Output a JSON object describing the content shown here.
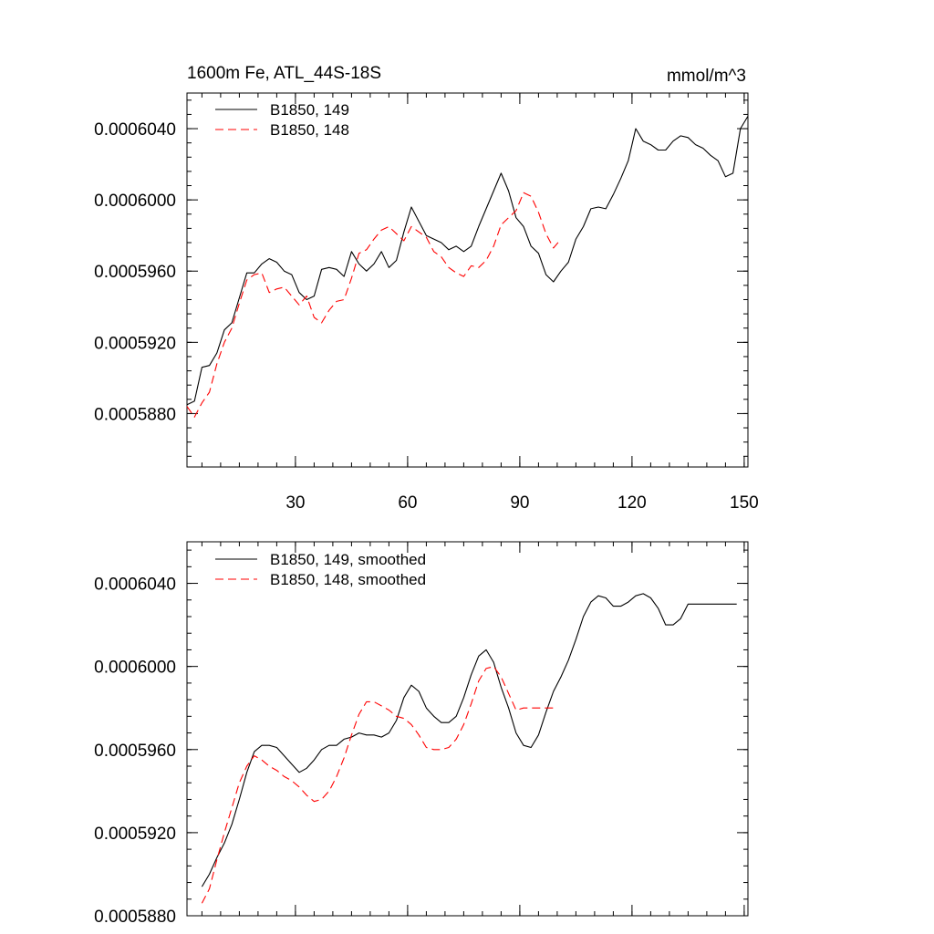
{
  "chart_data": [
    {
      "type": "line",
      "title": "1600m Fe, ATL_44S-18S",
      "units": "mmol/m^3",
      "xlim": [
        1,
        151
      ],
      "ylim": [
        0.000585,
        0.000606
      ],
      "xticks": [
        30,
        60,
        90,
        120,
        150
      ],
      "yticks": [
        0.000588,
        0.000592,
        0.000596,
        0.0006,
        0.000604
      ],
      "ytick_labels": [
        "0.0005880",
        "0.0005920",
        "0.0005960",
        "0.0006000",
        "0.0006040"
      ],
      "grid": false,
      "legend_position": "top-left",
      "series": [
        {
          "name": "B1850, 149",
          "color": "#000000",
          "dash": "solid",
          "x": [
            1,
            3,
            5,
            7,
            9,
            11,
            13,
            15,
            17,
            19,
            21,
            23,
            25,
            27,
            29,
            31,
            33,
            35,
            37,
            39,
            41,
            43,
            45,
            47,
            49,
            51,
            53,
            55,
            57,
            59,
            61,
            63,
            65,
            67,
            69,
            71,
            73,
            75,
            77,
            79,
            81,
            83,
            85,
            87,
            89,
            91,
            93,
            95,
            97,
            99,
            101,
            103,
            105,
            107,
            109,
            111,
            113,
            115,
            117,
            119,
            121,
            123,
            125,
            127,
            129,
            131,
            133,
            135,
            137,
            139,
            141,
            143,
            145,
            147,
            149,
            151
          ],
          "y": [
            0.0005885,
            0.0005887,
            0.0005906,
            0.0005907,
            0.0005914,
            0.0005927,
            0.0005931,
            0.0005945,
            0.0005959,
            0.0005959,
            0.0005964,
            0.0005967,
            0.0005965,
            0.000596,
            0.0005958,
            0.0005948,
            0.0005944,
            0.0005946,
            0.0005961,
            0.0005962,
            0.0005961,
            0.0005957,
            0.0005971,
            0.0005964,
            0.000596,
            0.0005964,
            0.0005971,
            0.0005962,
            0.0005966,
            0.0005982,
            0.0005996,
            0.0005988,
            0.000598,
            0.0005978,
            0.0005976,
            0.0005972,
            0.0005974,
            0.0005971,
            0.0005974,
            0.0005985,
            0.0005995,
            0.0006005,
            0.0006015,
            0.0006005,
            0.000599,
            0.0005985,
            0.0005974,
            0.000597,
            0.0005958,
            0.0005954,
            0.000596,
            0.0005965,
            0.0005978,
            0.0005985,
            0.0005995,
            0.0005996,
            0.0005995,
            0.0006003,
            0.0006012,
            0.0006022,
            0.000604,
            0.0006033,
            0.0006031,
            0.0006028,
            0.0006028,
            0.0006033,
            0.0006036,
            0.0006035,
            0.0006031,
            0.0006029,
            0.0006025,
            0.0006022,
            0.0006013,
            0.0006015,
            0.000604,
            0.0006047
          ]
        },
        {
          "name": "B1850, 148",
          "color": "#ff0000",
          "dash": "dashed",
          "x": [
            1,
            3,
            5,
            7,
            9,
            11,
            13,
            15,
            17,
            19,
            21,
            23,
            25,
            27,
            29,
            31,
            33,
            35,
            37,
            39,
            41,
            43,
            45,
            47,
            49,
            51,
            53,
            55,
            57,
            59,
            61,
            63,
            65,
            67,
            69,
            71,
            73,
            75,
            77,
            79,
            81,
            83,
            85,
            87,
            89,
            91,
            93,
            95,
            97,
            99,
            101
          ],
          "y": [
            0.0005884,
            0.0005878,
            0.0005886,
            0.0005892,
            0.0005908,
            0.000592,
            0.0005928,
            0.0005942,
            0.0005955,
            0.0005958,
            0.0005959,
            0.0005948,
            0.000595,
            0.0005951,
            0.0005946,
            0.0005941,
            0.0005946,
            0.0005934,
            0.0005931,
            0.0005938,
            0.0005943,
            0.0005944,
            0.0005956,
            0.000597,
            0.0005972,
            0.0005978,
            0.0005983,
            0.0005985,
            0.0005981,
            0.0005977,
            0.0005985,
            0.0005982,
            0.0005979,
            0.0005971,
            0.0005968,
            0.0005962,
            0.0005959,
            0.0005957,
            0.0005963,
            0.0005962,
            0.0005966,
            0.0005974,
            0.0005986,
            0.000599,
            0.0005994,
            0.0006004,
            0.0006002,
            0.0005993,
            0.0005981,
            0.0005973,
            0.0005978
          ]
        }
      ]
    },
    {
      "type": "line",
      "title": "",
      "xlim": [
        1,
        151
      ],
      "ylim": [
        0.000588,
        0.000606
      ],
      "xticks": [
        30,
        60,
        90,
        120,
        150
      ],
      "yticks": [
        0.000588,
        0.000592,
        0.000596,
        0.0006,
        0.000604
      ],
      "ytick_labels": [
        "0.0005880",
        "0.0005920",
        "0.0005960",
        "0.0006000",
        "0.0006040"
      ],
      "grid": false,
      "legend_position": "top-left",
      "series": [
        {
          "name": "B1850, 149, smoothed",
          "color": "#000000",
          "dash": "solid",
          "x": [
            5,
            7,
            9,
            11,
            13,
            15,
            17,
            19,
            21,
            23,
            25,
            27,
            29,
            31,
            33,
            35,
            37,
            39,
            41,
            43,
            45,
            47,
            49,
            51,
            53,
            55,
            57,
            59,
            61,
            63,
            65,
            67,
            69,
            71,
            73,
            75,
            77,
            79,
            81,
            83,
            85,
            87,
            89,
            91,
            93,
            95,
            97,
            99,
            101,
            103,
            105,
            107,
            109,
            111,
            113,
            115,
            117,
            119,
            121,
            123,
            125,
            127,
            129,
            131,
            133,
            135,
            137,
            139,
            141,
            143,
            145,
            147,
            148
          ],
          "y": [
            0.0005894,
            0.00059,
            0.0005908,
            0.0005915,
            0.0005924,
            0.0005936,
            0.0005949,
            0.0005959,
            0.0005962,
            0.0005962,
            0.0005961,
            0.0005957,
            0.0005953,
            0.0005949,
            0.0005951,
            0.0005955,
            0.000596,
            0.0005962,
            0.0005962,
            0.0005965,
            0.0005966,
            0.0005968,
            0.0005967,
            0.0005967,
            0.0005966,
            0.0005968,
            0.0005974,
            0.0005985,
            0.0005991,
            0.0005988,
            0.000598,
            0.0005976,
            0.0005973,
            0.0005973,
            0.0005976,
            0.0005985,
            0.0005996,
            0.0006005,
            0.0006008,
            0.0006002,
            0.000599,
            0.000598,
            0.0005968,
            0.0005962,
            0.0005961,
            0.0005967,
            0.0005978,
            0.0005988,
            0.0005995,
            0.0006003,
            0.0006013,
            0.0006024,
            0.0006031,
            0.0006034,
            0.0006033,
            0.0006029,
            0.0006029,
            0.0006031,
            0.0006034,
            0.0006035,
            0.0006033,
            0.0006028,
            0.000602,
            0.000602,
            0.0006023,
            0.000603,
            0.000603,
            0.000603,
            0.000603,
            0.000603,
            0.000603,
            0.000603,
            0.000603
          ]
        },
        {
          "name": "B1850, 148, smoothed",
          "color": "#ff0000",
          "dash": "dashed",
          "x": [
            5,
            7,
            9,
            11,
            13,
            15,
            17,
            19,
            21,
            23,
            25,
            27,
            29,
            31,
            33,
            35,
            37,
            39,
            41,
            43,
            45,
            47,
            49,
            51,
            53,
            55,
            57,
            59,
            61,
            63,
            65,
            67,
            69,
            71,
            73,
            75,
            77,
            79,
            81,
            83,
            85,
            87,
            89,
            91,
            93,
            95,
            97,
            99
          ],
          "y": [
            0.0005886,
            0.0005893,
            0.0005907,
            0.000592,
            0.0005932,
            0.0005944,
            0.0005952,
            0.0005957,
            0.0005955,
            0.0005952,
            0.000595,
            0.0005947,
            0.0005945,
            0.0005942,
            0.0005938,
            0.0005935,
            0.0005936,
            0.000594,
            0.0005947,
            0.0005956,
            0.0005967,
            0.0005977,
            0.0005983,
            0.0005983,
            0.0005981,
            0.0005979,
            0.0005976,
            0.0005975,
            0.0005972,
            0.0005967,
            0.0005961,
            0.000596,
            0.000596,
            0.0005961,
            0.0005965,
            0.0005972,
            0.0005982,
            0.0005993,
            0.0005999,
            0.0006,
            0.0005995,
            0.0005987,
            0.0005979,
            0.000598,
            0.000598,
            0.000598,
            0.000598,
            0.000598
          ]
        }
      ]
    }
  ]
}
